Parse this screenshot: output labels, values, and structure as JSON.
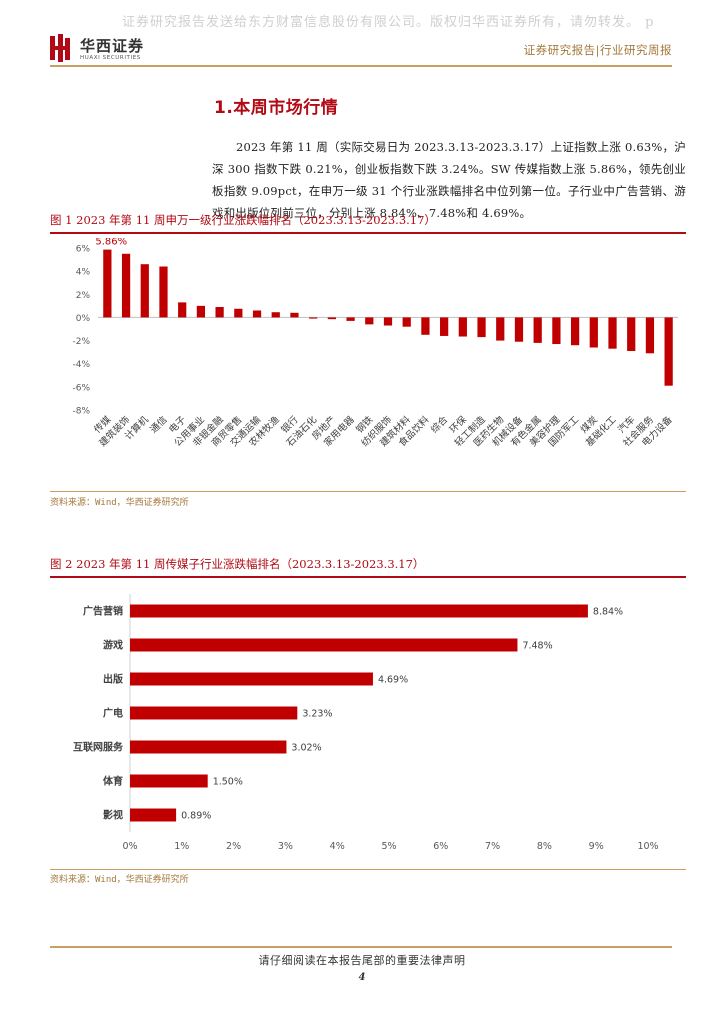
{
  "watermark": "证券研究报告发送给东方财富信息股份有限公司。版权归华西证券所有，请勿转发。 p",
  "logo": {
    "name_cn": "华西证券",
    "name_en": "HUAXI SECURITIES"
  },
  "header": {
    "right_text": "证券研究报告|行业研究周报"
  },
  "section_title": "1.本周市场行情",
  "paragraph": "2023 年第 11 周（实际交易日为 2023.3.13-2023.3.17）上证指数上涨 0.63%，沪深 300 指数下跌 0.21%，创业板指数下跌 3.24%。SW 传媒指数上涨 5.86%，领先创业板指数 9.09pct，在申万一级 31 个行业涨跌幅排名中位列第一位。子行业中广告营销、游戏和出版位列前三位，分别上涨 8.84%、7.48%和 4.69%。",
  "figure1": {
    "title": "图 1 2023 年第 11 周申万一级行业涨跌幅排名（2023.3.13-2023.3.17）",
    "source": "资料来源：Wind，华西证券研究所"
  },
  "figure2": {
    "title": "图 2 2023 年第 11 周传媒子行业涨跌幅排名（2023.3.13-2023.3.17）",
    "source": "资料来源：Wind，华西证券研究所"
  },
  "footer": {
    "text": "请仔细阅读在本报告尾部的重要法律声明",
    "page": "4"
  },
  "colors": {
    "accent": "#b10a14",
    "gold": "#c9a064"
  },
  "chart_data": [
    {
      "type": "bar",
      "categories": [
        "传媒",
        "建筑装饰",
        "计算机",
        "通信",
        "电子",
        "公用事业",
        "非银金融",
        "商贸零售",
        "交通运输",
        "农林牧渔",
        "银行",
        "石油石化",
        "房地产",
        "家用电器",
        "钢铁",
        "纺织服饰",
        "建筑材料",
        "食品饮料",
        "综合",
        "环保",
        "轻工制造",
        "医药生物",
        "机械设备",
        "有色金属",
        "美容护理",
        "国防军工",
        "煤炭",
        "基础化工",
        "汽车",
        "社会服务",
        "电力设备"
      ],
      "values": [
        5.86,
        5.5,
        4.6,
        4.4,
        1.3,
        1.0,
        0.9,
        0.75,
        0.6,
        0.45,
        0.4,
        -0.1,
        -0.15,
        -0.3,
        -0.6,
        -0.7,
        -0.8,
        -1.5,
        -1.6,
        -1.65,
        -1.7,
        -2.0,
        -2.1,
        -2.2,
        -2.3,
        -2.4,
        -2.6,
        -2.7,
        -2.9,
        -3.1,
        -5.9
      ],
      "yticks": [
        "6%",
        "4%",
        "2%",
        "0%",
        "-2%",
        "-4%",
        "-6%",
        "-8%"
      ],
      "ylim": [
        -8,
        6
      ],
      "data_labels": [
        "5.86%"
      ],
      "highlight_label_index": 0,
      "title": "",
      "xlabel": "",
      "ylabel": "",
      "grid": false,
      "color": "#c00000"
    },
    {
      "type": "bar",
      "orientation": "horizontal",
      "categories": [
        "广告营销",
        "游戏",
        "出版",
        "广电",
        "互联网服务",
        "体育",
        "影视"
      ],
      "values": [
        8.84,
        7.48,
        4.69,
        3.23,
        3.02,
        1.5,
        0.89
      ],
      "data_labels": [
        "8.84%",
        "7.48%",
        "4.69%",
        "3.23%",
        "3.02%",
        "1.50%",
        "0.89%"
      ],
      "xticks": [
        "0%",
        "1%",
        "2%",
        "3%",
        "4%",
        "5%",
        "6%",
        "7%",
        "8%",
        "9%",
        "10%"
      ],
      "xlim": [
        0,
        10
      ],
      "title": "",
      "xlabel": "",
      "ylabel": "",
      "grid": false,
      "color": "#c00000"
    }
  ]
}
